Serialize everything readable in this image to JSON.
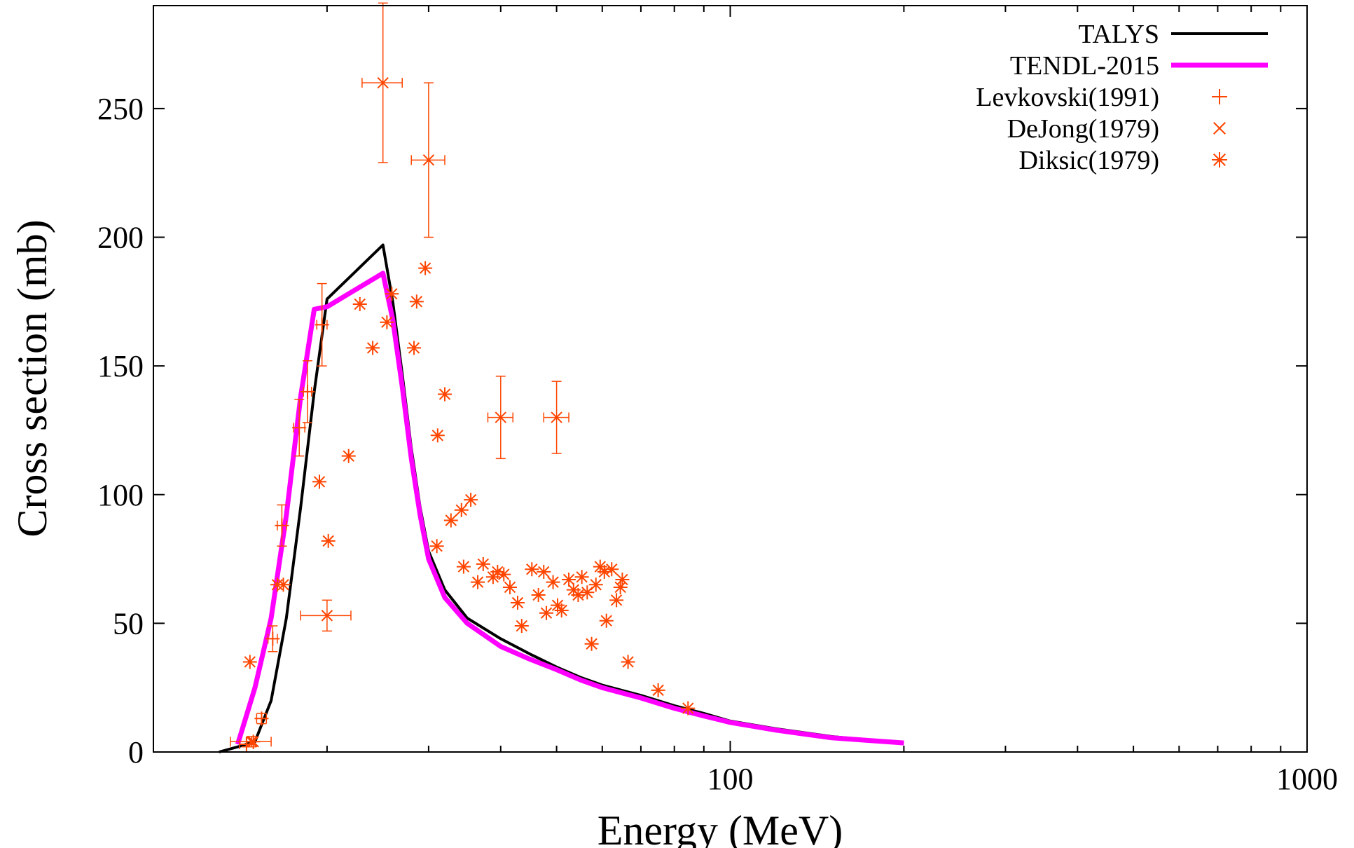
{
  "chart_data": {
    "type": "scatter",
    "xlabel": "Energy (MeV)",
    "ylabel": "Cross section (mb)",
    "x_scale": "log",
    "xlim": [
      10,
      1000
    ],
    "ylim": [
      0,
      290
    ],
    "x_ticks": [
      100,
      1000
    ],
    "x_tick_labels": [
      "100",
      "1000"
    ],
    "y_ticks": [
      0,
      50,
      100,
      150,
      200,
      250
    ],
    "y_tick_labels": [
      "0",
      "50",
      "100",
      "150",
      "200",
      "250"
    ],
    "grid": false,
    "legend_position": "top-right",
    "series": [
      {
        "name": "TALYS",
        "kind": "line",
        "color": "#000000",
        "x": [
          13,
          14,
          15,
          16,
          17,
          18,
          19,
          20,
          25,
          26,
          27,
          28,
          29,
          30,
          32,
          35,
          40,
          45,
          50,
          55,
          60,
          70,
          80,
          90,
          100,
          120,
          150,
          200
        ],
        "y": [
          0,
          2,
          4,
          20,
          52,
          95,
          140,
          176,
          197,
          175,
          147,
          118,
          95,
          78,
          63,
          52,
          44,
          38,
          33,
          29,
          26,
          22,
          18,
          15,
          12,
          9,
          6,
          3.5
        ]
      },
      {
        "name": "TENDL-2015",
        "kind": "line",
        "color": "#ff00ff",
        "x": [
          14,
          15,
          16,
          17,
          18,
          19,
          20,
          25,
          26,
          27,
          28,
          29,
          30,
          32,
          35,
          40,
          45,
          50,
          55,
          60,
          70,
          80,
          90,
          100,
          120,
          150,
          200
        ],
        "y": [
          3,
          25,
          52,
          92,
          138,
          172,
          173,
          186,
          168,
          142,
          114,
          92,
          75,
          60,
          50,
          41,
          36,
          32,
          28,
          25,
          21,
          17,
          14,
          11.5,
          8.5,
          5.5,
          3.5
        ]
      },
      {
        "name": "Levkovski(1991)",
        "kind": "points",
        "marker": "plus",
        "color": "#ff4500",
        "points": [
          {
            "x": 14.5,
            "y": 3,
            "yerr": 1,
            "xerr": 0.4
          },
          {
            "x": 15.4,
            "y": 13,
            "yerr": 2,
            "xerr": 0.3
          },
          {
            "x": 16.1,
            "y": 44,
            "yerr": 5,
            "xerr": 0.3
          },
          {
            "x": 16.7,
            "y": 88,
            "yerr": 8,
            "xerr": 0.3
          },
          {
            "x": 17.9,
            "y": 126,
            "yerr": 11,
            "xerr": 0.4
          },
          {
            "x": 18.5,
            "y": 140,
            "yerr": 12,
            "xerr": 0.3
          },
          {
            "x": 19.6,
            "y": 166,
            "yerr": 16,
            "xerr": 0.4
          }
        ]
      },
      {
        "name": "DeJong(1979)",
        "kind": "points",
        "marker": "cross",
        "color": "#ff4500",
        "points": [
          {
            "x": 14.8,
            "y": 4,
            "yerr": 2,
            "xerr": 1.2
          },
          {
            "x": 20,
            "y": 53,
            "yerr": 6,
            "xerr": 2
          },
          {
            "x": 25,
            "y": 260,
            "yerr": 31,
            "xerr": 2
          },
          {
            "x": 30,
            "y": 230,
            "yerr": 30,
            "xerr": 2
          },
          {
            "x": 40,
            "y": 130,
            "yerr": 16,
            "xerr": 2
          },
          {
            "x": 50,
            "y": 130,
            "yerr": 14,
            "xerr": 2.5
          }
        ]
      },
      {
        "name": "Diksic(1979)",
        "kind": "points",
        "marker": "star",
        "color": "#ff4500",
        "points": [
          {
            "x": 14.7,
            "y": 35
          },
          {
            "x": 14.9,
            "y": 4
          },
          {
            "x": 16.4,
            "y": 65
          },
          {
            "x": 16.8,
            "y": 65
          },
          {
            "x": 19.4,
            "y": 105
          },
          {
            "x": 20.1,
            "y": 82
          },
          {
            "x": 21.8,
            "y": 115
          },
          {
            "x": 22.8,
            "y": 174
          },
          {
            "x": 24,
            "y": 157
          },
          {
            "x": 25.4,
            "y": 167
          },
          {
            "x": 25.9,
            "y": 178
          },
          {
            "x": 28.3,
            "y": 157
          },
          {
            "x": 28.6,
            "y": 175
          },
          {
            "x": 29.6,
            "y": 188
          },
          {
            "x": 31.1,
            "y": 123
          },
          {
            "x": 32,
            "y": 139
          },
          {
            "x": 31,
            "y": 80
          },
          {
            "x": 32.8,
            "y": 90
          },
          {
            "x": 34.2,
            "y": 94
          },
          {
            "x": 35.5,
            "y": 98
          },
          {
            "x": 34.5,
            "y": 72
          },
          {
            "x": 36.5,
            "y": 66
          },
          {
            "x": 37.3,
            "y": 73
          },
          {
            "x": 38.8,
            "y": 68
          },
          {
            "x": 39.5,
            "y": 70
          },
          {
            "x": 40.5,
            "y": 69
          },
          {
            "x": 41.5,
            "y": 64
          },
          {
            "x": 42.8,
            "y": 58
          },
          {
            "x": 43.5,
            "y": 49
          },
          {
            "x": 45.3,
            "y": 71
          },
          {
            "x": 46.5,
            "y": 61
          },
          {
            "x": 47.5,
            "y": 70
          },
          {
            "x": 48,
            "y": 54
          },
          {
            "x": 49.3,
            "y": 66
          },
          {
            "x": 50.2,
            "y": 57
          },
          {
            "x": 51,
            "y": 55
          },
          {
            "x": 52.5,
            "y": 67
          },
          {
            "x": 53.5,
            "y": 63
          },
          {
            "x": 54.5,
            "y": 61
          },
          {
            "x": 55.3,
            "y": 68
          },
          {
            "x": 56.5,
            "y": 62
          },
          {
            "x": 57.5,
            "y": 42
          },
          {
            "x": 58.5,
            "y": 65
          },
          {
            "x": 59.5,
            "y": 72
          },
          {
            "x": 60.5,
            "y": 70
          },
          {
            "x": 61,
            "y": 51
          },
          {
            "x": 62.3,
            "y": 71
          },
          {
            "x": 63.5,
            "y": 59
          },
          {
            "x": 64.5,
            "y": 64
          },
          {
            "x": 65,
            "y": 67
          },
          {
            "x": 66.5,
            "y": 35
          },
          {
            "x": 75,
            "y": 24
          },
          {
            "x": 84.5,
            "y": 17
          }
        ]
      }
    ]
  }
}
